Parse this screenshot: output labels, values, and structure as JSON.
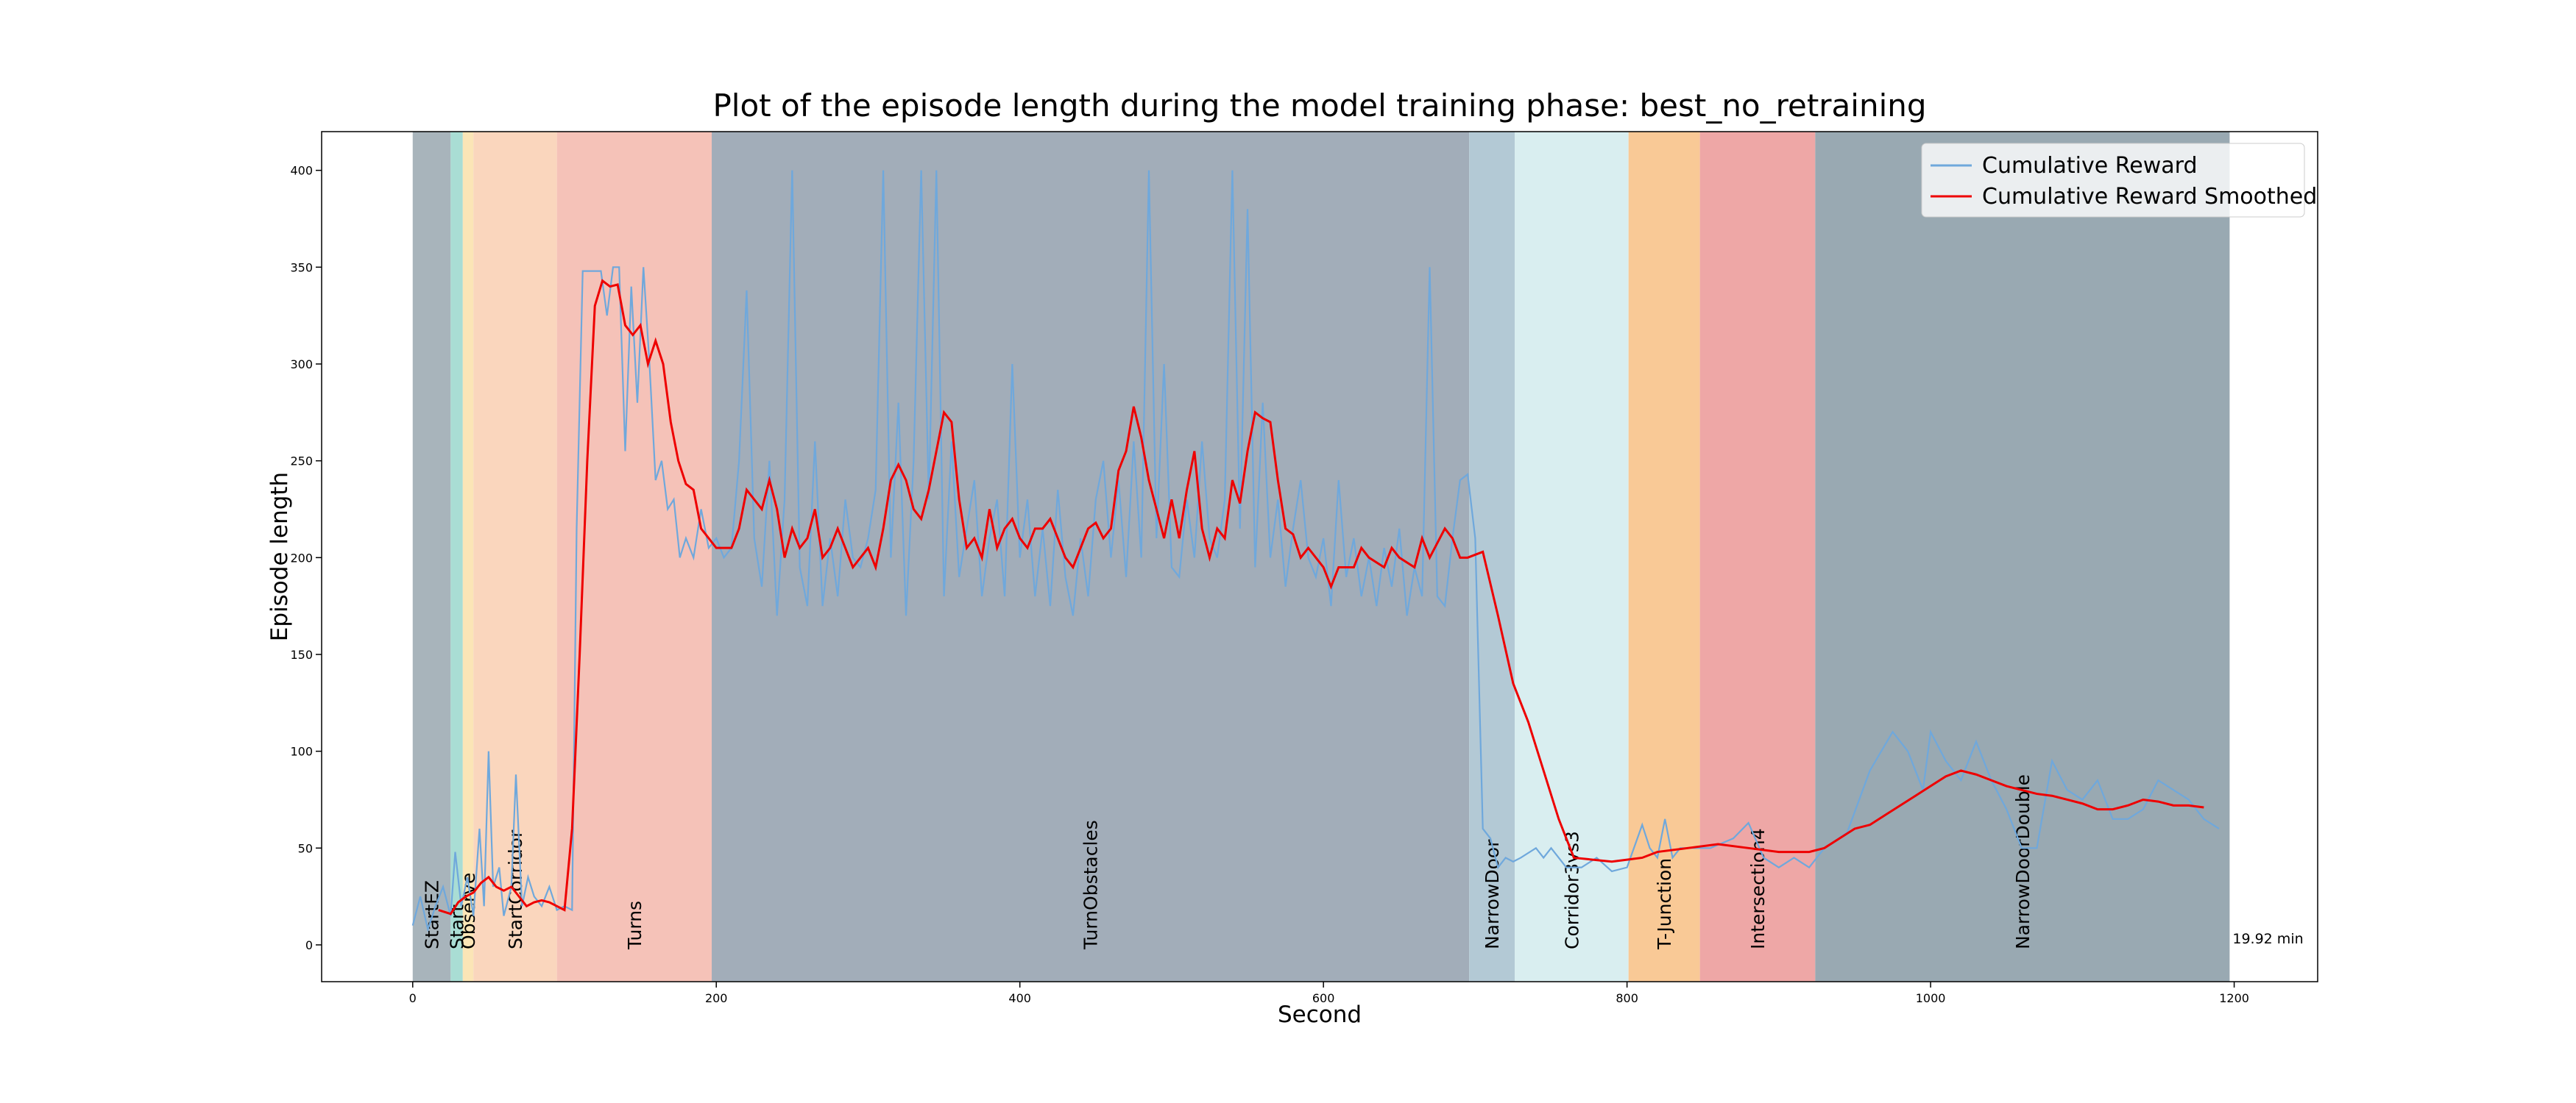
{
  "chart_data": {
    "type": "line",
    "title": "Plot of the episode length during the model training phase: best_no_retraining",
    "x_label": "Second",
    "y_label": "Episode length",
    "xlim": [
      -60,
      1255
    ],
    "ylim": [
      -19,
      420
    ],
    "xticks": [
      0,
      200,
      400,
      600,
      800,
      1000,
      1200
    ],
    "yticks": [
      0,
      50,
      100,
      150,
      200,
      250,
      300,
      350,
      400
    ],
    "legend": "upper right",
    "annotation": "19.92 min",
    "regions": [
      {
        "label": "StartEZ",
        "start": 0,
        "end": 25,
        "color": "#a8b4bb"
      },
      {
        "label": "Start",
        "start": 25,
        "end": 33,
        "color": "#a9ddd4"
      },
      {
        "label": "Observe",
        "start": 33,
        "end": 40,
        "color": "#fbe5b6"
      },
      {
        "label": "StartCorridor",
        "start": 40,
        "end": 95,
        "color": "#fad6bd"
      },
      {
        "label": "Turns",
        "start": 95,
        "end": 197,
        "color": "#f5c2b8"
      },
      {
        "label": "TurnObstacles",
        "start": 197,
        "end": 696,
        "color": "#a2adb9"
      },
      {
        "label": "NarrowDoor",
        "start": 696,
        "end": 726,
        "color": "#b3c9d5"
      },
      {
        "label": "Corridor3vs3",
        "start": 726,
        "end": 801,
        "color": "#d9eef0"
      },
      {
        "label": "T-Junction",
        "start": 801,
        "end": 848,
        "color": "#f9c996"
      },
      {
        "label": "Intersection4",
        "start": 848,
        "end": 924,
        "color": "#eea7a6"
      },
      {
        "label": "NarrowDoorDouble",
        "start": 924,
        "end": 1197,
        "color": "#99a9b2"
      }
    ],
    "series": [
      {
        "name": "Cumulative Reward",
        "color": "#6fa8dc",
        "x": [
          0,
          5,
          10,
          15,
          20,
          25,
          28,
          32,
          36,
          40,
          44,
          47,
          50,
          53,
          57,
          60,
          65,
          68,
          72,
          76,
          80,
          85,
          90,
          95,
          100,
          105,
          108,
          112,
          118,
          124,
          128,
          132,
          136,
          140,
          144,
          148,
          152,
          156,
          160,
          164,
          168,
          172,
          176,
          180,
          185,
          190,
          195,
          200,
          205,
          210,
          215,
          220,
          225,
          230,
          235,
          240,
          245,
          250,
          255,
          260,
          265,
          270,
          275,
          280,
          285,
          290,
          295,
          300,
          305,
          310,
          315,
          320,
          325,
          330,
          335,
          340,
          345,
          350,
          355,
          360,
          365,
          370,
          375,
          380,
          385,
          390,
          395,
          400,
          405,
          410,
          415,
          420,
          425,
          430,
          435,
          440,
          445,
          450,
          455,
          460,
          465,
          470,
          475,
          480,
          485,
          490,
          495,
          500,
          505,
          510,
          515,
          520,
          525,
          530,
          535,
          540,
          545,
          550,
          555,
          560,
          565,
          570,
          575,
          580,
          585,
          590,
          595,
          600,
          605,
          610,
          615,
          620,
          625,
          630,
          635,
          640,
          645,
          650,
          655,
          660,
          665,
          670,
          675,
          680,
          685,
          690,
          695,
          700,
          705,
          710,
          715,
          720,
          725,
          730,
          740,
          745,
          750,
          755,
          760,
          770,
          780,
          790,
          800,
          810,
          815,
          820,
          825,
          830,
          835,
          845,
          855,
          870,
          880,
          890,
          900,
          910,
          920,
          930,
          945,
          960,
          975,
          985,
          995,
          1000,
          1010,
          1020,
          1030,
          1040,
          1050,
          1060,
          1070,
          1080,
          1090,
          1100,
          1110,
          1120,
          1130,
          1140,
          1150,
          1160,
          1170,
          1180,
          1190
        ],
        "values": [
          10,
          25,
          8,
          20,
          30,
          15,
          48,
          20,
          35,
          15,
          60,
          20,
          100,
          30,
          40,
          15,
          30,
          88,
          20,
          35,
          25,
          20,
          30,
          18,
          20,
          18,
          215,
          348,
          348,
          348,
          325,
          350,
          350,
          255,
          340,
          280,
          350,
          300,
          240,
          250,
          225,
          230,
          200,
          210,
          200,
          225,
          205,
          210,
          200,
          205,
          250,
          338,
          210,
          185,
          250,
          170,
          230,
          400,
          195,
          175,
          260,
          175,
          210,
          180,
          230,
          200,
          195,
          210,
          235,
          400,
          200,
          280,
          170,
          250,
          400,
          230,
          400,
          180,
          260,
          190,
          215,
          240,
          180,
          210,
          230,
          180,
          300,
          200,
          230,
          180,
          215,
          175,
          235,
          190,
          170,
          210,
          180,
          230,
          250,
          200,
          240,
          190,
          260,
          200,
          400,
          210,
          300,
          195,
          190,
          230,
          200,
          260,
          210,
          200,
          230,
          400,
          215,
          380,
          195,
          280,
          200,
          230,
          185,
          215,
          240,
          200,
          190,
          210,
          175,
          240,
          190,
          210,
          180,
          200,
          175,
          205,
          185,
          215,
          170,
          195,
          180,
          350,
          180,
          175,
          210,
          240,
          243,
          210,
          60,
          55,
          40,
          45,
          43,
          45,
          50,
          45,
          50,
          45,
          40,
          40,
          45,
          38,
          40,
          62,
          50,
          45,
          65,
          45,
          50,
          50,
          50,
          55,
          63,
          45,
          40,
          45,
          40,
          50,
          58,
          90,
          110,
          100,
          80,
          110,
          95,
          85,
          105,
          85,
          70,
          50,
          50,
          95,
          80,
          75,
          85,
          65,
          65,
          70,
          85,
          80,
          75,
          65,
          60
        ]
      },
      {
        "name": "Cumulative Reward Smoothed",
        "color": "#ee0000",
        "x": [
          17,
          25,
          30,
          35,
          40,
          45,
          50,
          55,
          60,
          65,
          70,
          75,
          80,
          85,
          90,
          95,
          100,
          105,
          110,
          115,
          120,
          125,
          130,
          135,
          140,
          145,
          150,
          155,
          160,
          165,
          170,
          175,
          180,
          185,
          190,
          195,
          200,
          210,
          215,
          220,
          225,
          230,
          235,
          240,
          245,
          250,
          255,
          260,
          265,
          270,
          275,
          280,
          285,
          290,
          295,
          300,
          305,
          310,
          315,
          320,
          325,
          330,
          335,
          340,
          345,
          350,
          355,
          360,
          365,
          370,
          375,
          380,
          385,
          390,
          395,
          400,
          405,
          410,
          415,
          420,
          425,
          430,
          435,
          440,
          445,
          450,
          455,
          460,
          465,
          470,
          475,
          480,
          485,
          490,
          495,
          500,
          505,
          510,
          515,
          520,
          525,
          530,
          535,
          540,
          545,
          550,
          555,
          560,
          565,
          570,
          575,
          580,
          585,
          590,
          600,
          605,
          610,
          620,
          625,
          630,
          640,
          645,
          650,
          660,
          665,
          670,
          680,
          685,
          690,
          695,
          705,
          715,
          725,
          735,
          745,
          755,
          765,
          790,
          800,
          810,
          820,
          840,
          860,
          880,
          900,
          920,
          930,
          940,
          950,
          960,
          970,
          980,
          990,
          1000,
          1010,
          1020,
          1030,
          1040,
          1050,
          1060,
          1070,
          1080,
          1090,
          1100,
          1110,
          1120,
          1130,
          1140,
          1150,
          1160,
          1170,
          1180
        ],
        "values": [
          18,
          16,
          22,
          25,
          27,
          32,
          35,
          30,
          28,
          30,
          25,
          20,
          22,
          23,
          22,
          20,
          18,
          60,
          150,
          250,
          330,
          343,
          340,
          341,
          320,
          315,
          320,
          300,
          312,
          300,
          270,
          250,
          238,
          235,
          215,
          210,
          205,
          205,
          215,
          235,
          230,
          225,
          240,
          225,
          200,
          215,
          205,
          210,
          225,
          200,
          205,
          215,
          205,
          195,
          200,
          205,
          195,
          215,
          240,
          248,
          240,
          225,
          220,
          235,
          255,
          275,
          270,
          230,
          205,
          210,
          200,
          225,
          205,
          215,
          220,
          210,
          205,
          215,
          215,
          220,
          210,
          200,
          195,
          205,
          215,
          218,
          210,
          215,
          245,
          255,
          278,
          262,
          240,
          225,
          210,
          230,
          210,
          235,
          255,
          215,
          200,
          215,
          210,
          240,
          228,
          255,
          275,
          272,
          270,
          240,
          215,
          212,
          200,
          205,
          195,
          185,
          195,
          195,
          205,
          200,
          195,
          205,
          200,
          195,
          210,
          200,
          215,
          210,
          200,
          200,
          203,
          170,
          135,
          115,
          90,
          65,
          45,
          43,
          44,
          45,
          48,
          50,
          52,
          50,
          48,
          48,
          50,
          55,
          60,
          62,
          67,
          72,
          77,
          82,
          87,
          90,
          88,
          85,
          82,
          80,
          78,
          77,
          75,
          73,
          70,
          70,
          72,
          75,
          74,
          72,
          72,
          71
        ]
      }
    ]
  }
}
